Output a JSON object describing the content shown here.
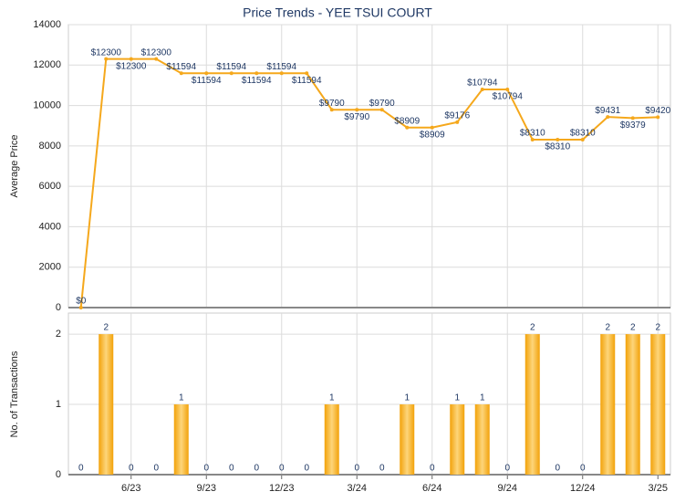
{
  "chart_data": [
    {
      "type": "line",
      "title": "Price Trends - YEE TSUI COURT",
      "ylabel": "Average Price",
      "color": "#f5a81c",
      "values": [
        0,
        12300,
        12300,
        12300,
        11594,
        11594,
        11594,
        11594,
        11594,
        11594,
        9790,
        9790,
        9790,
        8909,
        8909,
        9176,
        10794,
        10794,
        8310,
        8310,
        8310,
        9431,
        9379,
        9420
      ],
      "value_labels": [
        "$0",
        "$12300",
        "$12300",
        "$12300",
        "$11594",
        "$11594",
        "$11594",
        "$11594",
        "$11594",
        "$11594",
        "$9790",
        "$9790",
        "$9790",
        "$8909",
        "$8909",
        "$9176",
        "$10794",
        "$10794",
        "$8310",
        "$8310",
        "$8310",
        "$9431",
        "$9379",
        "$9420"
      ],
      "ylim": [
        0,
        14000
      ],
      "yticks": [
        0,
        2000,
        4000,
        6000,
        8000,
        10000,
        12000,
        14000
      ],
      "grid": true
    },
    {
      "type": "bar",
      "ylabel": "No. of Transactions",
      "color": "#f5a81c",
      "categories": [
        null,
        null,
        "6/23",
        null,
        null,
        "9/23",
        null,
        null,
        "12/23",
        null,
        null,
        "3/24",
        null,
        null,
        "6/24",
        null,
        null,
        "9/24",
        null,
        null,
        "12/24",
        null,
        null,
        "3/25"
      ],
      "values": [
        0,
        2,
        0,
        0,
        1,
        0,
        0,
        0,
        0,
        0,
        1,
        0,
        0,
        1,
        0,
        1,
        1,
        0,
        2,
        0,
        0,
        2,
        2,
        2
      ],
      "ylim": [
        0,
        2.3
      ],
      "yticks": [
        0,
        1,
        2
      ],
      "grid": true
    }
  ]
}
